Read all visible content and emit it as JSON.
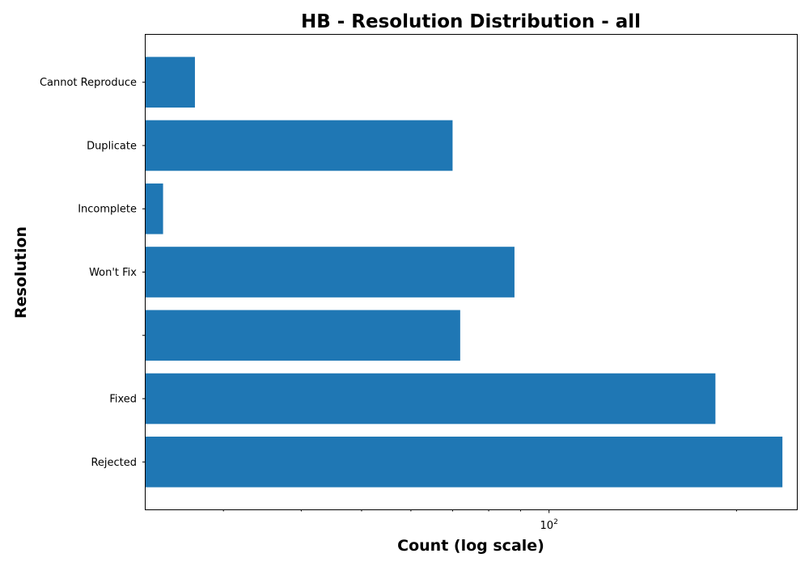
{
  "chart_data": {
    "type": "bar",
    "orientation": "horizontal",
    "title": "HB - Resolution Distribution - all",
    "xlabel": "Count (log scale)",
    "ylabel": "Resolution",
    "x_scale": "log",
    "x_tick_major": {
      "value": 100,
      "label_base": "10",
      "label_exp": "2"
    },
    "xlim": [
      22.5,
      250
    ],
    "grid": false,
    "color": "#1f77b4",
    "categories": [
      "Cannot Reproduce",
      "Duplicate",
      "Incomplete",
      "Won't Fix",
      "",
      "Fixed",
      "Rejected"
    ],
    "values": [
      27,
      70,
      24,
      88,
      72,
      185,
      237
    ]
  }
}
